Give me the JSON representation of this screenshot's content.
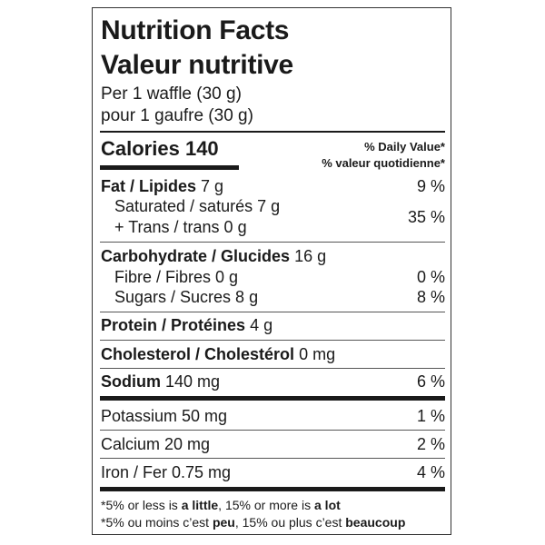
{
  "header": {
    "title_en": "Nutrition Facts",
    "title_fr": "Valeur nutritive",
    "serving_en": "Per 1 waffle (30 g)",
    "serving_fr": "pour 1 gaufre (30 g)"
  },
  "calories": {
    "label": "Calories",
    "value": "140"
  },
  "daily_value_header": {
    "en": "% Daily Value*",
    "fr": "% valeur quotidienne*"
  },
  "nutrients": {
    "fat": {
      "label": "Fat / Lipides",
      "amount": "7 g",
      "dv": "9 %"
    },
    "saturated": {
      "label": "Saturated / saturés 7 g"
    },
    "trans": {
      "label": "+ Trans / trans 0 g"
    },
    "sat_trans_dv": "35 %",
    "carbohydrate": {
      "label": "Carbohydrate / Glucides",
      "amount": "16 g"
    },
    "fibre": {
      "label": "Fibre / Fibres 0 g",
      "dv": "0 %"
    },
    "sugars": {
      "label": "Sugars / Sucres 8 g",
      "dv": "8 %"
    },
    "protein": {
      "label": "Protein / Protéines",
      "amount": "4 g"
    },
    "cholesterol": {
      "label": "Cholesterol / Cholestérol",
      "amount": "0 mg"
    },
    "sodium": {
      "label": "Sodium",
      "amount": "140 mg",
      "dv": "6 %"
    },
    "potassium": {
      "label": "Potassium 50 mg",
      "dv": "1 %"
    },
    "calcium": {
      "label": "Calcium 20 mg",
      "dv": "2 %"
    },
    "iron": {
      "label": "Iron / Fer 0.75 mg",
      "dv": "4 %"
    }
  },
  "footnote": {
    "en": {
      "p1": "*5% or less is ",
      "b1": "a little",
      "p2": ", 15% or more is ",
      "b2": "a lot"
    },
    "fr": {
      "p1": "*5% ou moins c’est ",
      "b1": "peu",
      "p2": ", 15% ou plus c’est ",
      "b2": "beaucoup"
    }
  }
}
